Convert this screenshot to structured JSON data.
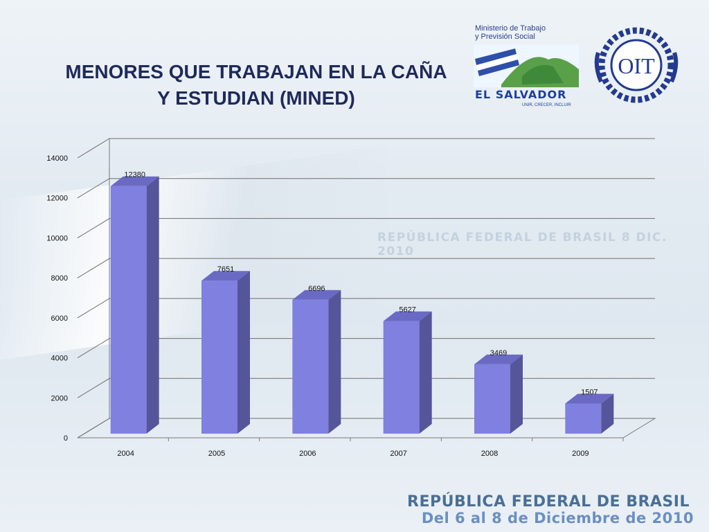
{
  "slide": {
    "title_line1": "MENORES QUE TRABAJAN EN LA CAÑA",
    "title_line2": "Y ESTUDIAN (MINED)",
    "watermark": "REPÚBLICA FEDERAL DE BRASIL 8 DIC. 2010",
    "footer_line1": "REPÚBLICA FEDERAL DE BRASIL",
    "footer_line2": "Del 6 al 8 de Diciembre de 2010"
  },
  "logos": {
    "ministerio_line1": "Ministerio de Trabajo",
    "ministerio_line2": "y Previsión Social",
    "country": "EL SALVADOR",
    "country_tagline": "UNIR, CRECER, INCLUIR",
    "oit_text": "OIT"
  },
  "colors": {
    "bar_front": "#8080e0",
    "bar_side": "#55559a",
    "bar_top": "#6a6ac4",
    "title": "#1f2a5a"
  },
  "chart_data": {
    "type": "bar",
    "categories": [
      "2004",
      "2005",
      "2006",
      "2007",
      "2008",
      "2009"
    ],
    "values": [
      12380,
      7651,
      6696,
      5627,
      3469,
      1507
    ],
    "ylim": [
      0,
      14000
    ],
    "yticks": [
      0,
      2000,
      4000,
      6000,
      8000,
      10000,
      12000,
      14000
    ],
    "data_labels": true,
    "style": "3d-column",
    "grid": true
  }
}
